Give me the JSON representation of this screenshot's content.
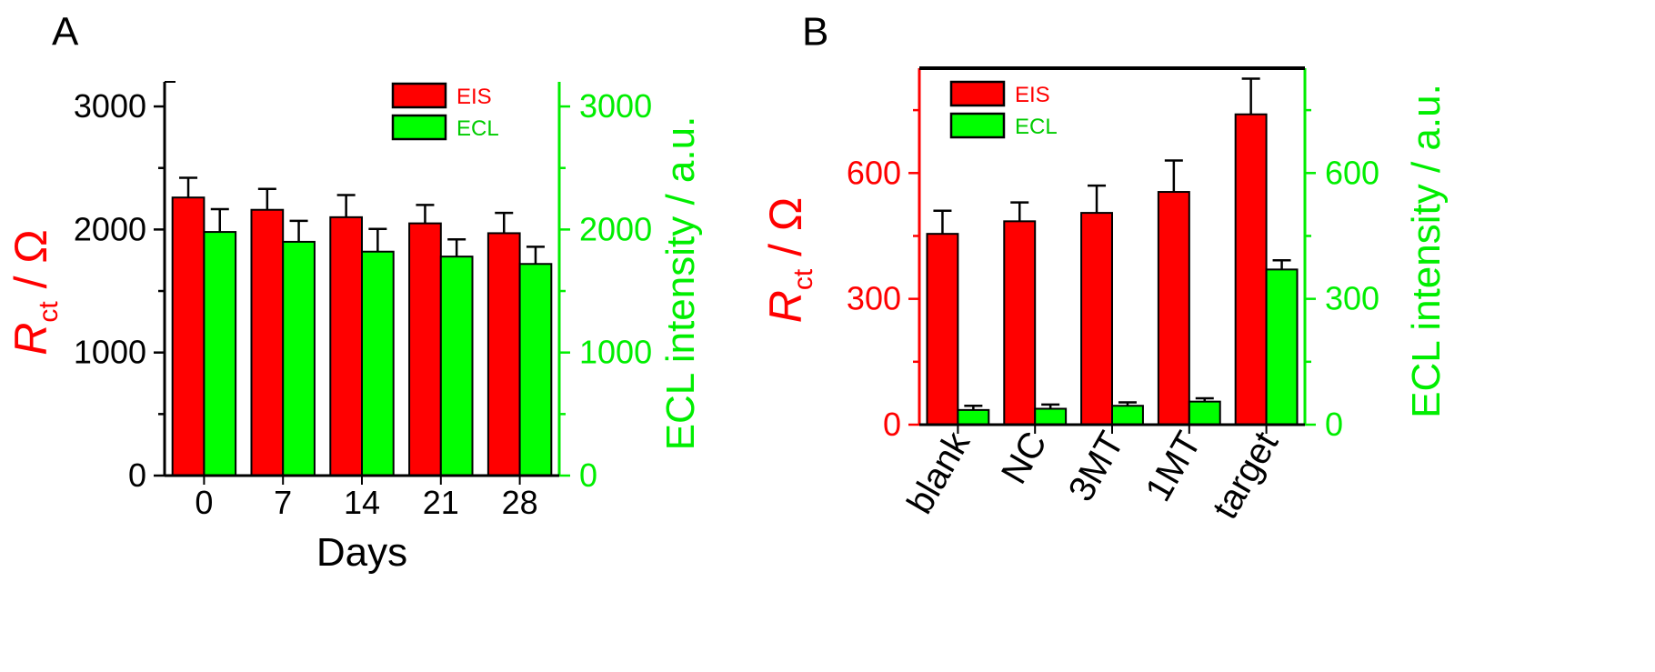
{
  "colors": {
    "eis": "#ff0000",
    "ecl": "#00ff00",
    "axis_green": "#00ee00",
    "axis_red": "#ff0000"
  },
  "chart_data": [
    {
      "panel": "A",
      "type": "bar",
      "xlabel": "Days",
      "ylabel_symbol": "R",
      "ylabel_subscript": "ct",
      "ylabel_unit": " / Ω",
      "ylabel_right": "ECL intensity / a.u.",
      "categories": [
        "0",
        "7",
        "14",
        "21",
        "28"
      ],
      "ylim": [
        0,
        3200
      ],
      "yticks": [
        0,
        1000,
        2000,
        3000
      ],
      "y2lim": [
        0,
        3200
      ],
      "y2ticks": [
        0,
        1000,
        2000,
        3000
      ],
      "legend": "top-right",
      "series": [
        {
          "name": "EIS",
          "axis": "left",
          "values": [
            2260,
            2160,
            2100,
            2050,
            1970
          ],
          "errors": [
            160,
            170,
            180,
            150,
            165
          ]
        },
        {
          "name": "ECL",
          "axis": "right",
          "values": [
            1980,
            1900,
            1820,
            1780,
            1720
          ],
          "errors": [
            185,
            170,
            185,
            140,
            140
          ]
        }
      ]
    },
    {
      "panel": "B",
      "type": "bar",
      "xlabel": "",
      "ylabel_symbol": "R",
      "ylabel_subscript": "ct",
      "ylabel_unit": " / Ω",
      "ylabel_right": "ECL intensity / a.u.",
      "categories": [
        "blank",
        "NC",
        "3MT",
        "1MT",
        "target"
      ],
      "ylim": [
        0,
        850
      ],
      "yticks": [
        0,
        300,
        600
      ],
      "y2lim": [
        0,
        850
      ],
      "y2ticks": [
        0,
        300,
        600
      ],
      "legend": "top-left",
      "series": [
        {
          "name": "EIS",
          "axis": "left",
          "values": [
            455,
            485,
            505,
            555,
            740
          ],
          "errors": [
            55,
            45,
            65,
            75,
            85
          ]
        },
        {
          "name": "ECL",
          "axis": "right",
          "values": [
            35,
            38,
            45,
            55,
            370
          ],
          "errors": [
            10,
            10,
            8,
            8,
            22
          ]
        }
      ]
    }
  ]
}
